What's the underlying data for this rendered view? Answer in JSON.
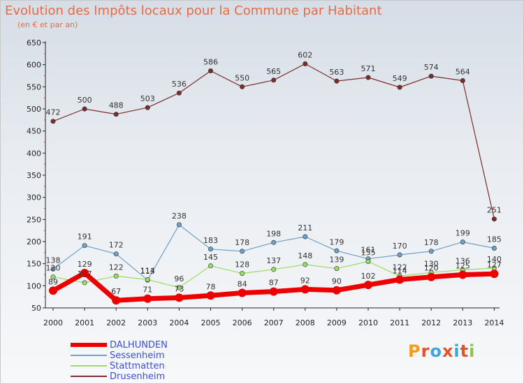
{
  "header": {
    "title": "Evolution des Impôts locaux pour la Commune par Habitant",
    "subtitle": "(en € et par an)"
  },
  "brand": {
    "text": "Proxiti",
    "letter_colors": [
      "#f29b1d",
      "#e2522b",
      "#3da6d8",
      "#e2522b",
      "#3da6d8",
      "#e2522b",
      "#8cc63f"
    ]
  },
  "chart_data": {
    "type": "line",
    "title": "Evolution des Impôts locaux pour la Commune par Habitant",
    "subtitle": "(en € et par an)",
    "xlabel": "",
    "ylabel": "",
    "x": [
      "2000",
      "2001",
      "2002",
      "2003",
      "2004",
      "2005",
      "2006",
      "2007",
      "2008",
      "2009",
      "2010",
      "2011",
      "2012",
      "2013",
      "2014"
    ],
    "ylim": [
      50,
      650
    ],
    "yticks": [
      "50",
      "100",
      "150",
      "200",
      "250",
      "300",
      "350",
      "400",
      "450",
      "500",
      "550",
      "600",
      "650"
    ],
    "grid": false,
    "legend": "bottom-left",
    "series": [
      {
        "name": "DALHUNDEN",
        "color": "#ee0000",
        "values": [
          89,
          129,
          67,
          71,
          73,
          78,
          84,
          87,
          92,
          90,
          102,
          114,
          120,
          125,
          127
        ],
        "labels": [
          "89",
          "129",
          "67",
          "71",
          "73",
          "78",
          "84",
          "87",
          "92",
          "90",
          "102",
          "114",
          "120",
          "125",
          "127"
        ]
      },
      {
        "name": "Sessenheim",
        "color": "#6fa0c8",
        "values": [
          138,
          191,
          172,
          113,
          238,
          183,
          178,
          198,
          211,
          179,
          161,
          170,
          178,
          199,
          185
        ],
        "labels": [
          "138",
          "191",
          "172",
          "113",
          "238",
          "183",
          "178",
          "198",
          "211",
          "179",
          "161",
          "170",
          "178",
          "199",
          "185"
        ]
      },
      {
        "name": "Stattmatten",
        "color": "#99dd66",
        "values": [
          120,
          107,
          122,
          114,
          96,
          145,
          128,
          137,
          148,
          139,
          155,
          122,
          130,
          136,
          140
        ],
        "labels": [
          "120",
          "107",
          "122",
          "114",
          "96",
          "145",
          "128",
          "137",
          "148",
          "139",
          "155",
          "122",
          "130",
          "136",
          "140"
        ]
      },
      {
        "name": "Drusenheim",
        "color": "#7b2c2c",
        "values": [
          472,
          500,
          488,
          503,
          536,
          586,
          550,
          565,
          602,
          563,
          571,
          549,
          574,
          564,
          251
        ],
        "labels": [
          "472",
          "500",
          "488",
          "503",
          "536",
          "586",
          "550",
          "565",
          "602",
          "563",
          "571",
          "549",
          "574",
          "564",
          "251"
        ]
      }
    ]
  }
}
